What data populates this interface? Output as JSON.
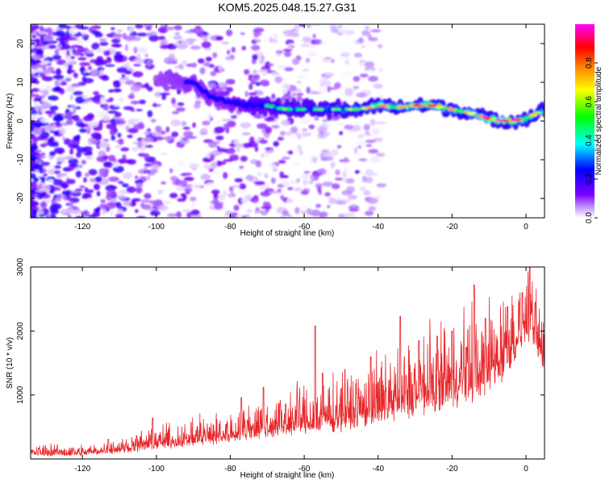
{
  "chart_data": [
    {
      "type": "heatmap",
      "title": "KOM5.2025.048.15.27.G31",
      "xlabel": "Height of straight line (km)",
      "ylabel": "Frequency (Hz)",
      "xlim": [
        -134,
        5
      ],
      "ylim": [
        -25,
        25
      ],
      "xticks": [
        -120,
        -100,
        -80,
        -60,
        -40,
        -20,
        0
      ],
      "yticks": [
        -20,
        -10,
        0,
        10,
        20
      ],
      "colorbar": {
        "label": "Normalized spectral amplitude",
        "range": [
          0,
          1
        ],
        "ticks": [
          0.0,
          0.2,
          0.4,
          0.6,
          0.8
        ],
        "colormap": [
          "#ffffff",
          "#c8a0ff",
          "#7a00ff",
          "#0000ff",
          "#00ffff",
          "#00ff00",
          "#ffff00",
          "#ff8000",
          "#ff0000",
          "#ff00ff"
        ]
      },
      "ridge": {
        "description_points_x": [
          -100,
          -90,
          -85,
          -80,
          -75,
          -70,
          -65,
          -60,
          -55,
          -50,
          -45,
          -40,
          -35,
          -30,
          -25,
          -20,
          -15,
          -10,
          -5,
          0,
          5
        ],
        "description_points_freq": [
          11,
          10,
          6,
          5,
          4,
          4,
          3,
          3,
          3,
          3,
          3,
          4,
          3.5,
          4,
          4,
          3,
          2,
          0.5,
          0,
          0.5,
          3
        ],
        "description_points_amp": [
          0.25,
          0.3,
          0.3,
          0.3,
          0.4,
          0.45,
          0.5,
          0.45,
          0.5,
          0.5,
          0.55,
          0.7,
          0.6,
          0.75,
          0.8,
          0.65,
          0.6,
          0.9,
          1.0,
          0.6,
          0.55
        ]
      }
    },
    {
      "type": "line",
      "xlabel": "Height of straight line (km)",
      "ylabel": "SNR (10 * v/v)",
      "xlim": [
        -134,
        5
      ],
      "ylim": [
        0,
        3000
      ],
      "xticks": [
        -120,
        -100,
        -80,
        -60,
        -40,
        -20,
        0
      ],
      "yticks": [
        1000,
        2000,
        3000
      ],
      "color": "#e8262a",
      "envelope_x": [
        -134,
        -120,
        -110,
        -100,
        -90,
        -80,
        -75,
        -70,
        -60,
        -55,
        -50,
        -45,
        -40,
        -35,
        -30,
        -25,
        -20,
        -15,
        -10,
        -5,
        -2,
        0,
        2,
        5
      ],
      "envelope_base": [
        60,
        60,
        110,
        170,
        230,
        290,
        340,
        380,
        430,
        460,
        500,
        560,
        600,
        680,
        760,
        830,
        900,
        980,
        1100,
        1400,
        1700,
        1900,
        1800,
        1400
      ],
      "envelope_amp": [
        150,
        150,
        200,
        300,
        350,
        400,
        500,
        500,
        700,
        700,
        750,
        800,
        900,
        1000,
        1000,
        1050,
        1100,
        1200,
        1200,
        1000,
        1000,
        1000,
        900,
        700
      ],
      "spikes": [
        {
          "x": -113,
          "y": 310
        },
        {
          "x": -101,
          "y": 640
        },
        {
          "x": -88,
          "y": 560
        },
        {
          "x": -77,
          "y": 960
        },
        {
          "x": -71,
          "y": 1120
        },
        {
          "x": -65,
          "y": 860
        },
        {
          "x": -57,
          "y": 2080
        },
        {
          "x": -55,
          "y": 1340
        },
        {
          "x": -49,
          "y": 1400
        },
        {
          "x": -42,
          "y": 1600
        },
        {
          "x": -34,
          "y": 2230
        },
        {
          "x": -29,
          "y": 1850
        },
        {
          "x": -24,
          "y": 1920
        },
        {
          "x": -20,
          "y": 2000
        },
        {
          "x": -16,
          "y": 1750
        },
        {
          "x": -14,
          "y": 2720
        },
        {
          "x": -11,
          "y": 2200
        },
        {
          "x": -5,
          "y": 2380
        },
        {
          "x": -1,
          "y": 2600
        },
        {
          "x": 1,
          "y": 3000
        },
        {
          "x": 2.5,
          "y": 2450
        }
      ]
    }
  ]
}
